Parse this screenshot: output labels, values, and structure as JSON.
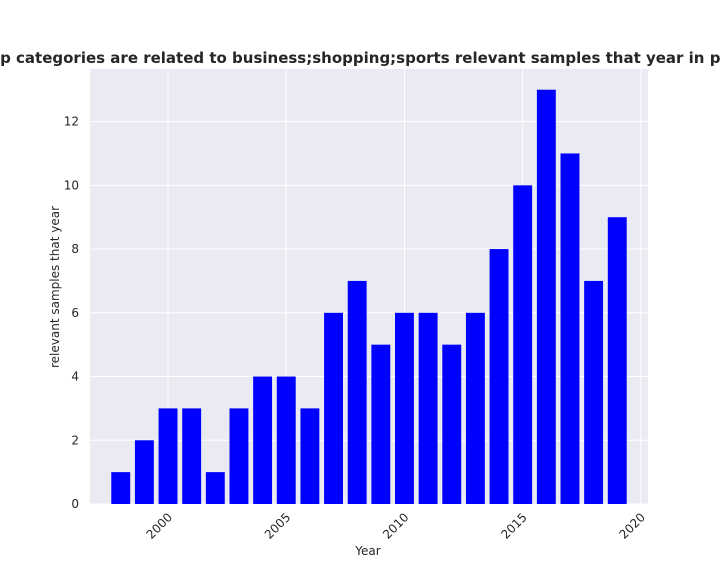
{
  "chart_data": {
    "type": "bar",
    "title": "Number of app categories are related to business;shopping;sports relevant samples that year in privacy policies",
    "xlabel": "Year",
    "ylabel": "relevant samples that year",
    "x": [
      1998,
      1999,
      2000,
      2001,
      2002,
      2003,
      2004,
      2005,
      2006,
      2007,
      2008,
      2009,
      2010,
      2011,
      2012,
      2013,
      2014,
      2015,
      2016,
      2017,
      2018,
      2019
    ],
    "values": [
      1,
      2,
      3,
      3,
      1,
      3,
      4,
      4,
      3,
      6,
      7,
      5,
      6,
      6,
      5,
      6,
      8,
      10,
      13,
      11,
      7,
      9
    ],
    "xlim": [
      1996.7,
      2020.3
    ],
    "ylim": [
      0,
      13.65
    ],
    "xticks": [
      2000,
      2005,
      2010,
      2015,
      2020
    ],
    "yticks": [
      0,
      2,
      4,
      6,
      8,
      10,
      12
    ],
    "grid": true,
    "colors": {
      "bar": "#0000ff",
      "plot_background": "#eaeaf2",
      "grid": "#ffffff",
      "text": "#262626"
    }
  }
}
